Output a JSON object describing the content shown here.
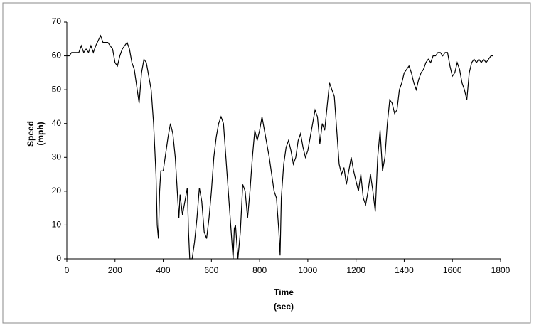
{
  "chart_data": {
    "type": "line",
    "y_label": [
      "Speed",
      "(mph)"
    ],
    "x_label": [
      "Time",
      "(sec)"
    ],
    "x": [
      0,
      10,
      20,
      50,
      60,
      70,
      80,
      90,
      100,
      110,
      120,
      140,
      150,
      170,
      180,
      190,
      200,
      210,
      220,
      230,
      240,
      250,
      260,
      270,
      280,
      290,
      300,
      310,
      320,
      330,
      340,
      350,
      360,
      370,
      375,
      380,
      385,
      390,
      400,
      410,
      420,
      430,
      440,
      450,
      460,
      465,
      470,
      480,
      490,
      500,
      505,
      510,
      520,
      530,
      540,
      550,
      560,
      570,
      580,
      590,
      600,
      610,
      620,
      630,
      640,
      650,
      660,
      670,
      680,
      690,
      695,
      700,
      710,
      720,
      730,
      740,
      750,
      760,
      770,
      780,
      790,
      800,
      810,
      820,
      830,
      840,
      850,
      860,
      870,
      880,
      885,
      890,
      900,
      910,
      920,
      930,
      940,
      950,
      960,
      970,
      980,
      990,
      1000,
      1010,
      1020,
      1030,
      1040,
      1050,
      1060,
      1070,
      1080,
      1090,
      1100,
      1110,
      1120,
      1130,
      1140,
      1150,
      1160,
      1170,
      1180,
      1190,
      1200,
      1210,
      1220,
      1230,
      1240,
      1250,
      1260,
      1270,
      1280,
      1290,
      1300,
      1310,
      1320,
      1330,
      1340,
      1350,
      1360,
      1370,
      1380,
      1390,
      1400,
      1410,
      1420,
      1430,
      1440,
      1450,
      1460,
      1470,
      1480,
      1490,
      1500,
      1510,
      1520,
      1530,
      1540,
      1550,
      1560,
      1570,
      1580,
      1590,
      1600,
      1610,
      1620,
      1630,
      1640,
      1650,
      1660,
      1670,
      1680,
      1690,
      1700,
      1710,
      1720,
      1730,
      1740,
      1750,
      1760,
      1770
    ],
    "series": [
      {
        "color": "#000000",
        "values": [
          60,
          60,
          61,
          61,
          63,
          61,
          62,
          61,
          63,
          61,
          63,
          66,
          64,
          64,
          63,
          62,
          58,
          57,
          60,
          62,
          63,
          64,
          62,
          58,
          56,
          51,
          46,
          55,
          59,
          58,
          54,
          50,
          40,
          25,
          10,
          6,
          20,
          26,
          26,
          31,
          36,
          40,
          37,
          30,
          18,
          12,
          19,
          13,
          17,
          21,
          8,
          0,
          0,
          5,
          12,
          21,
          17,
          8,
          6,
          12,
          20,
          30,
          36,
          40,
          42,
          40,
          30,
          20,
          10,
          0,
          9,
          10,
          0,
          8,
          22,
          20,
          12,
          20,
          30,
          38,
          35,
          38,
          42,
          38,
          34,
          30,
          25,
          20,
          18,
          8,
          1,
          18,
          28,
          33,
          35,
          32,
          28,
          30,
          35,
          37,
          33,
          30,
          32,
          36,
          40,
          44,
          42,
          34,
          40,
          38,
          45,
          52,
          50,
          48,
          38,
          28,
          25,
          27,
          22,
          26,
          30,
          26,
          23,
          20,
          25,
          18,
          16,
          20,
          25,
          20,
          14,
          30,
          38,
          26,
          30,
          40,
          47,
          46,
          43,
          44,
          50,
          52,
          55,
          56,
          57,
          55,
          52,
          50,
          53,
          55,
          56,
          58,
          59,
          58,
          60,
          60,
          61,
          61,
          60,
          61,
          61,
          57,
          54,
          55,
          58,
          56,
          52,
          50,
          47,
          55,
          58,
          59,
          58,
          59,
          58,
          59,
          58,
          59,
          60,
          60
        ]
      }
    ],
    "xlim": [
      0,
      1800
    ],
    "ylim": [
      0,
      70
    ],
    "xticks": [
      0,
      200,
      400,
      600,
      800,
      1000,
      1200,
      1400,
      1600,
      1800
    ],
    "yticks": [
      0,
      10,
      20,
      30,
      40,
      50,
      60,
      70
    ],
    "grid": false
  }
}
